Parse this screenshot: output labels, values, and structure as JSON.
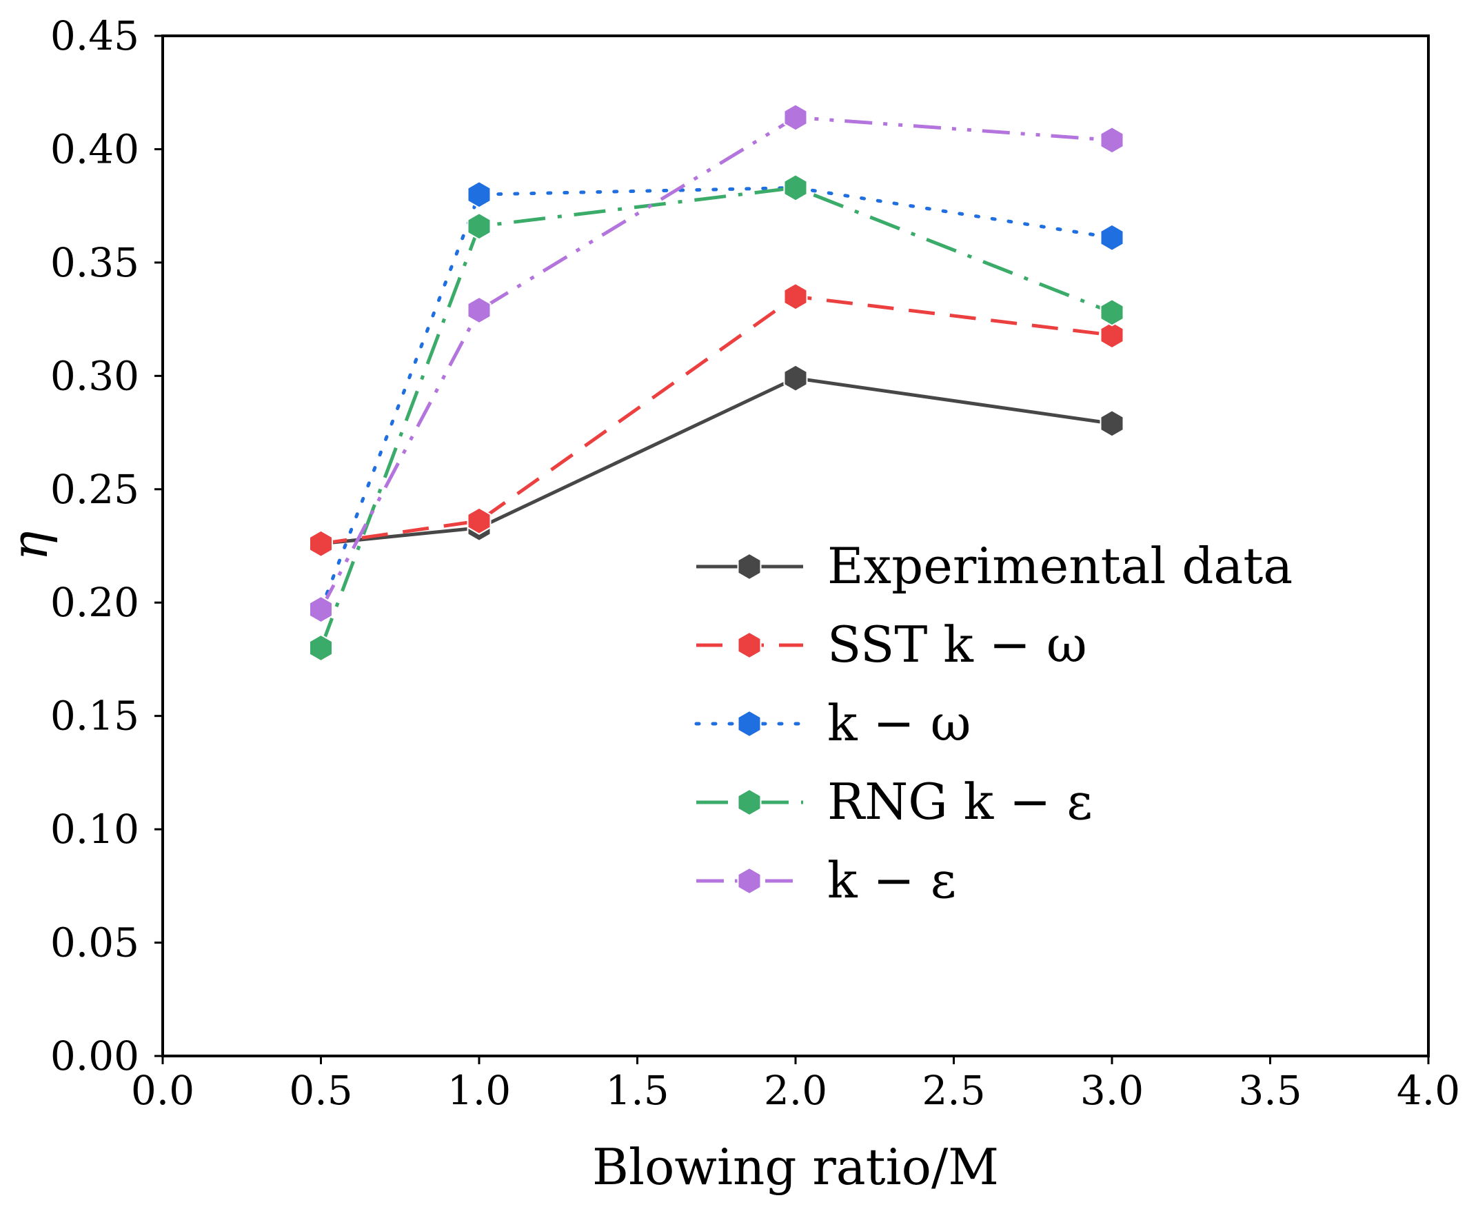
{
  "chart_data": {
    "type": "line",
    "title": "",
    "xlabel": "Blowing ratio/M",
    "ylabel": "η",
    "xlim": [
      0.0,
      4.0
    ],
    "ylim": [
      0.0,
      0.45
    ],
    "xticks": [
      0.0,
      0.5,
      1.0,
      1.5,
      2.0,
      2.5,
      3.0,
      3.5,
      4.0
    ],
    "xtick_labels": [
      "0.0",
      "0.5",
      "1.0",
      "1.5",
      "2.0",
      "2.5",
      "3.0",
      "3.5",
      "4.0"
    ],
    "yticks": [
      0.0,
      0.05,
      0.1,
      0.15,
      0.2,
      0.25,
      0.3,
      0.35,
      0.4,
      0.45
    ],
    "ytick_labels": [
      "0.00",
      "0.05",
      "0.10",
      "0.15",
      "0.20",
      "0.25",
      "0.30",
      "0.35",
      "0.40",
      "0.45"
    ],
    "grid": false,
    "legend_position": "center-right",
    "x": [
      0.5,
      1.0,
      2.0,
      3.0
    ],
    "series": [
      {
        "name": "Experimental data",
        "values": [
          0.226,
          0.233,
          0.299,
          0.279
        ],
        "color": "#474747",
        "dash": "solid"
      },
      {
        "name": "SST k − ω",
        "values": [
          0.226,
          0.236,
          0.335,
          0.318
        ],
        "color": "#ec3f3f",
        "dash": "dashed"
      },
      {
        "name": "k − ω",
        "values": [
          0.197,
          0.38,
          0.383,
          0.361
        ],
        "color": "#1f6fe0",
        "dash": "dotted"
      },
      {
        "name": "RNG k − ε",
        "values": [
          0.18,
          0.366,
          0.383,
          0.328
        ],
        "color": "#3aab68",
        "dash": "dashdot"
      },
      {
        "name": "k − ε",
        "values": [
          0.197,
          0.329,
          0.414,
          0.404
        ],
        "color": "#b474dd",
        "dash": "dashdotdot"
      }
    ]
  }
}
